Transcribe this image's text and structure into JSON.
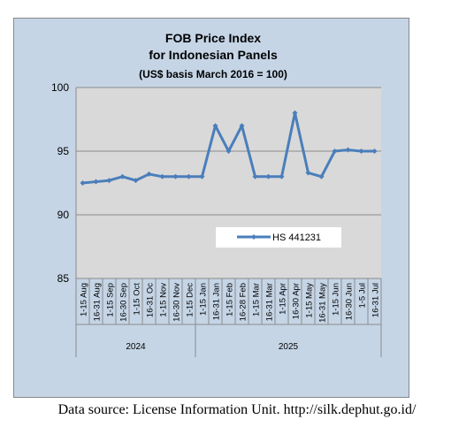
{
  "chart_data": {
    "type": "line",
    "title_lines": [
      "FOB Price Index",
      "for Indonesian Panels",
      "(US$ basis March 2016 = 100)"
    ],
    "categories": [
      "1-15 Aug",
      "16-31 Aug",
      "1-15 Sep",
      "16-30 Sep",
      "1-15 Oct",
      "16-31 Oc",
      "1-15 Nov",
      "16-30 Nov",
      "1-15 Dec",
      "1-15 Jan",
      "16-31 Jan",
      "1-15 Feb",
      "16-28 Feb",
      "1-15 Mar",
      "16-31 Mar",
      "1-15 Apr",
      "16-30 Apr",
      "1-15 May",
      "16-31 May",
      "1-15 Jun",
      "16-30 Jun",
      "1-5 Jul",
      "16-31 Jul"
    ],
    "groups": [
      {
        "label": "2024",
        "count": 9
      },
      {
        "label": "2025",
        "count": 14
      }
    ],
    "series": [
      {
        "name": "HS 441231",
        "color": "#4a7ebb",
        "values": [
          92.5,
          92.6,
          92.7,
          93.0,
          92.7,
          93.2,
          93.0,
          93.0,
          93.0,
          93.0,
          97.0,
          95.0,
          97.0,
          93.0,
          93.0,
          93.0,
          98.0,
          93.3,
          93.0,
          95.0,
          95.1,
          95.0,
          95.0
        ]
      }
    ],
    "yticks": [
      "85",
      "90",
      "95",
      "100"
    ],
    "ylim": [
      85,
      100
    ],
    "grid": true,
    "legend_position": "inside-right"
  },
  "footer": {
    "source": "Data source: License Information Unit. http://silk.dephut.go.id/"
  }
}
